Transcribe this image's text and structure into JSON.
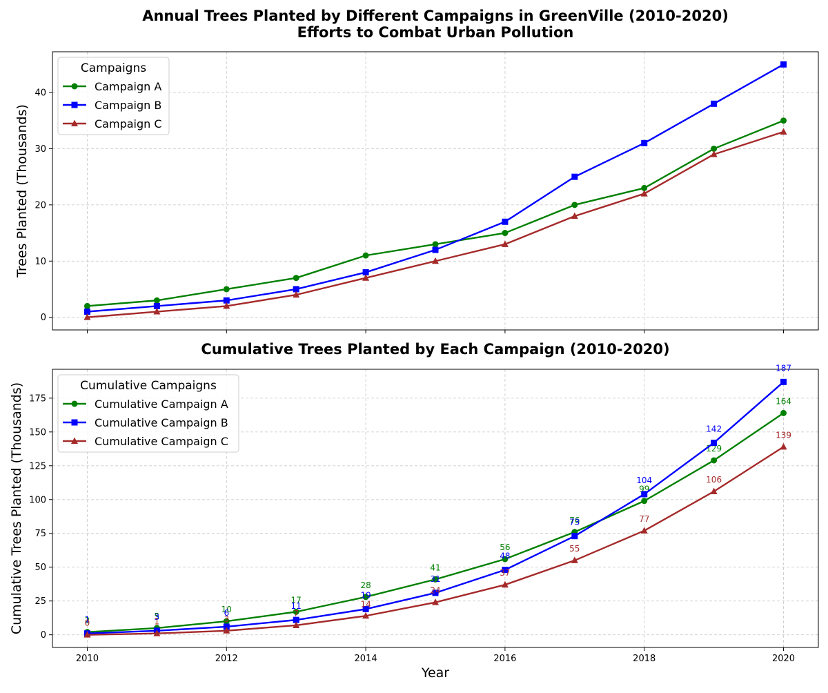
{
  "colors": {
    "series_a": "#008000",
    "series_b": "#0000ff",
    "series_c": "#a52a2a",
    "grid": "#cccccc",
    "axis": "#000000"
  },
  "chart_data": [
    {
      "type": "line",
      "title": "Annual Trees Planted by Different Campaigns in GreenVille (2010-2020)\nEfforts to Combat Urban Pollution",
      "xlabel": "",
      "ylabel": "Trees Planted (Thousands)",
      "x": [
        2010,
        2011,
        2012,
        2013,
        2014,
        2015,
        2016,
        2017,
        2018,
        2019,
        2020
      ],
      "xlim": [
        2009.5,
        2020.5
      ],
      "ylim": [
        -2.25,
        47.25
      ],
      "yticks": [
        0,
        10,
        20,
        30,
        40
      ],
      "xticks": [
        2010,
        2012,
        2014,
        2016,
        2018,
        2020
      ],
      "show_xtick_labels": false,
      "grid": true,
      "legend": {
        "title": "Campaigns",
        "position": "top-left"
      },
      "series": [
        {
          "name": "Campaign A",
          "color": "#008000",
          "marker": "circle",
          "values": [
            2,
            3,
            5,
            7,
            11,
            13,
            15,
            20,
            23,
            30,
            35
          ]
        },
        {
          "name": "Campaign B",
          "color": "#0000ff",
          "marker": "square",
          "values": [
            1,
            2,
            3,
            5,
            8,
            12,
            17,
            25,
            31,
            38,
            45
          ]
        },
        {
          "name": "Campaign C",
          "color": "#a52a2a",
          "marker": "triangle",
          "values": [
            0,
            1,
            2,
            4,
            7,
            10,
            13,
            18,
            22,
            29,
            33
          ]
        }
      ],
      "data_labels": false
    },
    {
      "type": "line",
      "title": "Cumulative Trees Planted by Each Campaign (2010-2020)",
      "xlabel": "Year",
      "ylabel": "Cumulative Trees Planted (Thousands)",
      "x": [
        2010,
        2011,
        2012,
        2013,
        2014,
        2015,
        2016,
        2017,
        2018,
        2019,
        2020
      ],
      "xlim": [
        2009.5,
        2020.5
      ],
      "ylim": [
        -9.35,
        196.35
      ],
      "yticks": [
        0,
        25,
        50,
        75,
        100,
        125,
        150,
        175
      ],
      "xticks": [
        2010,
        2012,
        2014,
        2016,
        2018,
        2020
      ],
      "show_xtick_labels": true,
      "grid": true,
      "legend": {
        "title": "Cumulative Campaigns",
        "position": "top-left"
      },
      "series": [
        {
          "name": "Cumulative Campaign A",
          "color": "#008000",
          "marker": "circle",
          "values": [
            2,
            5,
            10,
            17,
            28,
            41,
            56,
            76,
            99,
            129,
            164
          ]
        },
        {
          "name": "Cumulative Campaign B",
          "color": "#0000ff",
          "marker": "square",
          "values": [
            1,
            3,
            6,
            11,
            19,
            31,
            48,
            73,
            104,
            142,
            187
          ]
        },
        {
          "name": "Cumulative Campaign C",
          "color": "#a52a2a",
          "marker": "triangle",
          "values": [
            0,
            1,
            3,
            7,
            14,
            24,
            37,
            55,
            77,
            106,
            139
          ]
        }
      ],
      "data_labels": true
    }
  ]
}
